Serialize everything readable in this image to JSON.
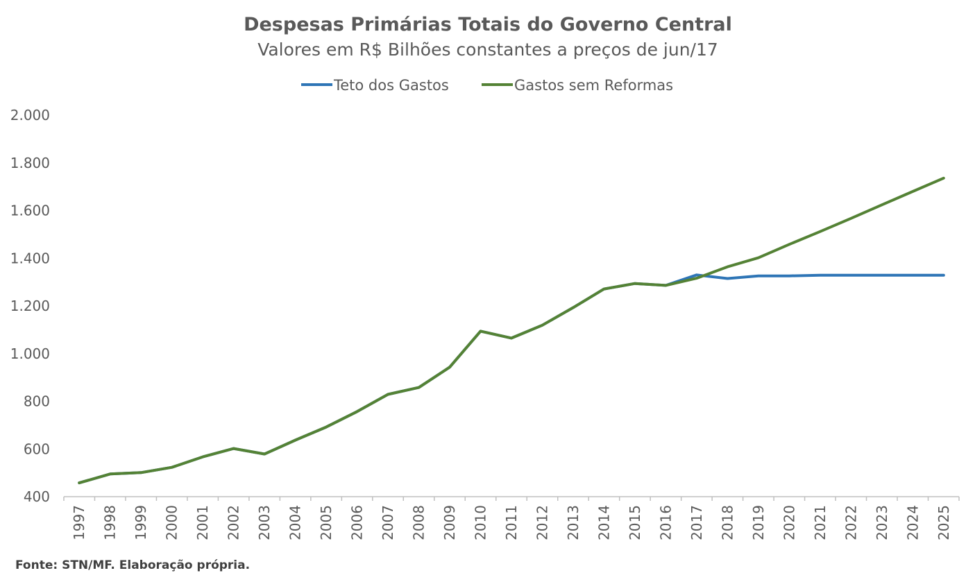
{
  "chart_data": {
    "type": "line",
    "title": "Despesas Primárias Totais do Governo Central",
    "subtitle": "Valores em R$ Bilhões constantes a preços de jun/17",
    "xlabel": "",
    "ylabel": "",
    "ylim": [
      400,
      2000
    ],
    "yticks": [
      "2.000",
      "1.800",
      "1.600",
      "1.400",
      "1.200",
      "1.000",
      "800",
      "600",
      "400"
    ],
    "ytick_values": [
      2000,
      1800,
      1600,
      1400,
      1200,
      1000,
      800,
      600,
      400
    ],
    "categories": [
      "1997",
      "1998",
      "1999",
      "2000",
      "2001",
      "2002",
      "2003",
      "2004",
      "2005",
      "2006",
      "2007",
      "2008",
      "2009",
      "2010",
      "2011",
      "2012",
      "2013",
      "2014",
      "2015",
      "2016",
      "2017",
      "2018",
      "2019",
      "2020",
      "2021",
      "2022",
      "2023",
      "2024",
      "2025"
    ],
    "legend_position": "top-center",
    "series": [
      {
        "name": "Teto dos Gastos",
        "color": "#2E75B6",
        "values": [
          458,
          495,
          501,
          523,
          567,
          602,
          579,
          637,
          692,
          757,
          829,
          858,
          943,
          1094,
          1065,
          1119,
          1193,
          1271,
          1294,
          1286,
          1330,
          1315,
          1326,
          1326,
          1329,
          1329,
          1329,
          1329,
          1329
        ]
      },
      {
        "name": "Gastos sem Reformas",
        "color": "#548235",
        "values": [
          458,
          495,
          501,
          523,
          567,
          602,
          579,
          637,
          692,
          757,
          829,
          858,
          943,
          1094,
          1065,
          1119,
          1193,
          1271,
          1294,
          1286,
          1316,
          1364,
          1402,
          1458,
          1512,
          1567,
          1624,
          1680,
          1736
        ]
      }
    ]
  },
  "source": "Fonte: STN/MF. Elaboração própria."
}
